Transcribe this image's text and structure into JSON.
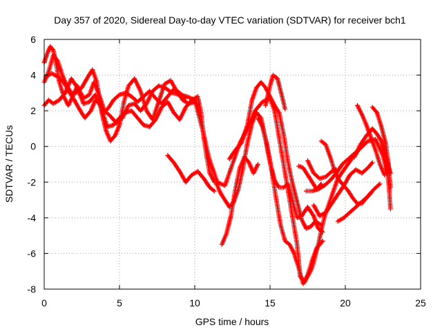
{
  "chart_data": {
    "type": "scatter",
    "title": "Day 357 of 2020, Sidereal Day-to-day VTEC variation (SDTVAR) for receiver bch1",
    "xlabel": "GPS time / hours",
    "ylabel": "SDTVAR / TECUs",
    "xlim": [
      0,
      25
    ],
    "ylim": [
      -8,
      6
    ],
    "x_ticks": [
      0,
      5,
      10,
      15,
      20,
      25
    ],
    "y_ticks": [
      -8,
      -6,
      -4,
      -2,
      0,
      2,
      4,
      6
    ],
    "grid": true,
    "marker": "+",
    "color": "#ff0000",
    "series": [
      {
        "points": [
          [
            0.0,
            4.7
          ],
          [
            0.2,
            5.2
          ],
          [
            0.4,
            5.6
          ],
          [
            0.6,
            5.4
          ],
          [
            0.8,
            4.6
          ],
          [
            1.0,
            3.6
          ],
          [
            1.3,
            2.8
          ],
          [
            1.6,
            2.3
          ],
          [
            1.9,
            2.8
          ],
          [
            2.2,
            3.4
          ],
          [
            2.6,
            2.7
          ],
          [
            3.0,
            2.9
          ],
          [
            3.3,
            3.6
          ],
          [
            3.6,
            3.0
          ],
          [
            4.0,
            2.0
          ],
          [
            4.4,
            1.7
          ],
          [
            4.8,
            1.3
          ],
          [
            5.2,
            1.6
          ],
          [
            5.6,
            2.3
          ],
          [
            6.0,
            2.4
          ],
          [
            6.4,
            2.0
          ],
          [
            6.8,
            2.4
          ],
          [
            7.2,
            3.1
          ],
          [
            7.6,
            3.4
          ],
          [
            8.0,
            3.3
          ],
          [
            8.5,
            3.0
          ],
          [
            9.0,
            2.9
          ],
          [
            9.5,
            2.8
          ],
          [
            10.0,
            2.6
          ],
          [
            10.5,
            1.0
          ],
          [
            11.0,
            -0.8
          ],
          [
            11.5,
            -2.0
          ],
          [
            12.0,
            -2.2
          ],
          [
            12.5,
            -1.0
          ],
          [
            13.0,
            0.2
          ],
          [
            13.5,
            1.0
          ],
          [
            14.0,
            2.0
          ],
          [
            14.5,
            2.5
          ],
          [
            15.0,
            2.7
          ],
          [
            15.3,
            2.0
          ],
          [
            15.6,
            0.5
          ],
          [
            16.0,
            -1.5
          ],
          [
            16.4,
            -3.5
          ],
          [
            16.8,
            -5.5
          ],
          [
            17.0,
            -7.3
          ],
          [
            17.3,
            -7.6
          ],
          [
            17.8,
            -6.8
          ],
          [
            18.2,
            -5.5
          ],
          [
            18.6,
            -4.0
          ],
          [
            19.0,
            -3.0
          ],
          [
            19.5,
            -1.8
          ],
          [
            20.0,
            -1.2
          ],
          [
            20.5,
            -0.6
          ],
          [
            21.0,
            -0.1
          ],
          [
            21.5,
            0.3
          ],
          [
            22.0,
            0.4
          ],
          [
            22.5,
            -0.5
          ],
          [
            22.8,
            -1.5
          ]
        ]
      },
      {
        "points": [
          [
            0.0,
            3.6
          ],
          [
            0.3,
            4.2
          ],
          [
            0.6,
            5.1
          ],
          [
            0.9,
            4.8
          ],
          [
            1.2,
            4.0
          ],
          [
            1.5,
            3.4
          ],
          [
            1.8,
            3.0
          ],
          [
            2.1,
            3.0
          ],
          [
            2.5,
            3.3
          ],
          [
            2.9,
            3.9
          ],
          [
            3.2,
            4.3
          ],
          [
            3.5,
            3.6
          ],
          [
            3.8,
            2.0
          ],
          [
            4.1,
            0.9
          ],
          [
            4.4,
            0.3
          ],
          [
            4.7,
            0.6
          ],
          [
            5.0,
            1.2
          ],
          [
            5.3,
            2.5
          ],
          [
            5.6,
            3.4
          ],
          [
            6.0,
            3.8
          ],
          [
            6.4,
            3.1
          ],
          [
            6.8,
            2.0
          ],
          [
            7.2,
            1.5
          ],
          [
            7.6,
            2.5
          ],
          [
            8.0,
            3.5
          ],
          [
            8.4,
            3.7
          ],
          [
            8.8,
            3.1
          ],
          [
            9.2,
            2.6
          ],
          [
            9.6,
            2.4
          ],
          [
            10.0,
            2.5
          ],
          [
            10.2,
            2.3
          ]
        ]
      },
      {
        "points": [
          [
            0.0,
            2.3
          ],
          [
            0.3,
            2.6
          ],
          [
            0.6,
            2.4
          ],
          [
            1.0,
            2.6
          ],
          [
            1.4,
            3.0
          ],
          [
            1.8,
            3.8
          ],
          [
            2.2,
            3.3
          ],
          [
            2.6,
            2.4
          ],
          [
            3.0,
            2.5
          ],
          [
            3.4,
            2.9
          ],
          [
            3.8,
            2.1
          ],
          [
            4.2,
            1.1
          ],
          [
            4.6,
            1.2
          ],
          [
            5.0,
            1.6
          ],
          [
            5.4,
            1.9
          ],
          [
            5.8,
            2.0
          ],
          [
            6.2,
            1.6
          ],
          [
            6.6,
            1.2
          ],
          [
            7.0,
            1.1
          ],
          [
            7.4,
            1.5
          ],
          [
            7.8,
            2.2
          ],
          [
            8.2,
            2.5
          ],
          [
            8.6,
            1.9
          ],
          [
            9.0,
            1.5
          ],
          [
            9.4,
            2.2
          ],
          [
            9.8,
            2.6
          ],
          [
            10.2,
            2.8
          ],
          [
            10.4,
            2.0
          ],
          [
            10.6,
            0.5
          ],
          [
            10.8,
            -0.6
          ],
          [
            11.0,
            -1.5
          ],
          [
            11.3,
            -2.0
          ]
        ]
      },
      {
        "points": [
          [
            0.1,
            3.9
          ],
          [
            0.5,
            4.1
          ],
          [
            0.9,
            3.9
          ],
          [
            1.3,
            3.6
          ],
          [
            1.7,
            3.0
          ],
          [
            2.0,
            2.6
          ],
          [
            2.4,
            2.0
          ],
          [
            2.7,
            1.6
          ],
          [
            3.1,
            2.0
          ],
          [
            3.4,
            2.6
          ],
          [
            3.7,
            2.4
          ],
          [
            4.0,
            1.9
          ],
          [
            4.3,
            2.2
          ],
          [
            4.6,
            2.6
          ],
          [
            5.0,
            2.9
          ],
          [
            5.4,
            3.0
          ],
          [
            5.8,
            2.8
          ],
          [
            6.2,
            2.5
          ],
          [
            6.6,
            2.8
          ],
          [
            7.0,
            3.1
          ],
          [
            7.4,
            2.7
          ],
          [
            7.8,
            2.4
          ],
          [
            8.2,
            2.8
          ],
          [
            8.6,
            3.2
          ],
          [
            9.0,
            3.0
          ],
          [
            9.4,
            2.7
          ]
        ]
      },
      {
        "points": [
          [
            8.2,
            -0.5
          ],
          [
            8.6,
            -0.9
          ],
          [
            9.0,
            -1.4
          ],
          [
            9.4,
            -2.0
          ],
          [
            9.8,
            -1.6
          ],
          [
            10.2,
            -1.4
          ],
          [
            10.6,
            -1.8
          ],
          [
            11.0,
            -2.3
          ],
          [
            11.3,
            -2.5
          ]
        ]
      },
      {
        "points": [
          [
            11.4,
            -2.0
          ],
          [
            11.7,
            -2.6
          ],
          [
            12.0,
            -3.0
          ],
          [
            12.3,
            -3.4
          ],
          [
            12.6,
            -3.1
          ],
          [
            12.9,
            -2.4
          ],
          [
            13.2,
            -1.2
          ],
          [
            13.5,
            0.2
          ],
          [
            13.8,
            1.3
          ],
          [
            14.1,
            1.9
          ],
          [
            14.4,
            1.6
          ],
          [
            14.7,
            0.4
          ],
          [
            15.0,
            -0.9
          ],
          [
            15.3,
            -1.9
          ],
          [
            15.6,
            -2.3
          ],
          [
            15.9,
            -2.3
          ],
          [
            16.2,
            -2.1
          ],
          [
            16.5,
            -3.1
          ],
          [
            16.8,
            -4.0
          ],
          [
            17.1,
            -3.9
          ],
          [
            17.5,
            -3.4
          ],
          [
            17.9,
            -3.9
          ],
          [
            18.2,
            -4.6
          ],
          [
            18.5,
            -4.8
          ]
        ]
      },
      {
        "points": [
          [
            11.8,
            -5.5
          ],
          [
            12.1,
            -4.9
          ],
          [
            12.4,
            -3.9
          ],
          [
            12.7,
            -2.4
          ],
          [
            13.0,
            -1.2
          ],
          [
            13.3,
            -0.6
          ],
          [
            13.6,
            -0.9
          ],
          [
            13.9,
            -1.5
          ],
          [
            14.2,
            -1.0
          ]
        ]
      },
      {
        "points": [
          [
            12.3,
            -0.7
          ],
          [
            12.7,
            -0.2
          ],
          [
            13.1,
            0.2
          ],
          [
            13.5,
            1.2
          ],
          [
            13.8,
            2.6
          ],
          [
            14.1,
            3.3
          ],
          [
            14.4,
            3.6
          ],
          [
            14.7,
            3.3
          ],
          [
            15.0,
            2.8
          ],
          [
            15.3,
            2.3
          ],
          [
            15.6,
            1.9
          ],
          [
            15.9,
            0.7
          ],
          [
            16.2,
            -0.9
          ],
          [
            16.5,
            -2.1
          ],
          [
            16.8,
            -3.1
          ],
          [
            17.1,
            -4.1
          ],
          [
            17.4,
            -4.6
          ],
          [
            17.7,
            -4.5
          ],
          [
            18.0,
            -4.2
          ],
          [
            18.4,
            -4.4
          ]
        ]
      },
      {
        "points": [
          [
            14.7,
            2.3
          ],
          [
            15.0,
            3.4
          ],
          [
            15.2,
            4.0
          ],
          [
            15.5,
            3.8
          ],
          [
            15.8,
            2.8
          ],
          [
            16.0,
            2.1
          ]
        ]
      },
      {
        "points": [
          [
            14.2,
            1.6
          ],
          [
            14.5,
            1.1
          ],
          [
            14.8,
            0.1
          ],
          [
            15.1,
            -1.3
          ],
          [
            15.4,
            -2.9
          ],
          [
            15.7,
            -4.4
          ],
          [
            16.0,
            -5.3
          ],
          [
            16.3,
            -5.5
          ],
          [
            16.6,
            -6.0
          ],
          [
            16.9,
            -6.8
          ],
          [
            17.2,
            -7.7
          ],
          [
            17.5,
            -7.2
          ],
          [
            17.8,
            -6.4
          ],
          [
            18.1,
            -5.7
          ],
          [
            18.5,
            -5.3
          ]
        ]
      },
      {
        "points": [
          [
            16.9,
            -1.1
          ],
          [
            17.2,
            -1.2
          ],
          [
            17.5,
            -1.6
          ],
          [
            17.8,
            -2.0
          ],
          [
            18.1,
            -2.4
          ],
          [
            18.4,
            -2.1
          ]
        ]
      },
      {
        "points": [
          [
            17.4,
            -2.5
          ],
          [
            17.8,
            -2.5
          ],
          [
            18.2,
            -2.4
          ],
          [
            18.6,
            -2.2
          ],
          [
            19.0,
            -1.9
          ],
          [
            19.4,
            -1.5
          ],
          [
            19.8,
            -1.0
          ],
          [
            20.2,
            -0.7
          ],
          [
            20.6,
            -0.4
          ],
          [
            21.0,
            -0.1
          ]
        ]
      },
      {
        "points": [
          [
            17.9,
            -3.3
          ],
          [
            18.3,
            -3.9
          ],
          [
            18.7,
            -3.7
          ],
          [
            19.1,
            -3.2
          ],
          [
            19.5,
            -2.7
          ],
          [
            19.9,
            -2.2
          ],
          [
            20.3,
            -1.6
          ],
          [
            20.7,
            -1.3
          ],
          [
            21.1,
            -1.5
          ],
          [
            21.5,
            -1.2
          ],
          [
            21.8,
            -0.9
          ]
        ]
      },
      {
        "points": [
          [
            17.5,
            -0.8
          ],
          [
            17.9,
            -1.5
          ],
          [
            18.3,
            -1.8
          ],
          [
            18.7,
            -1.7
          ],
          [
            19.1,
            -1.4
          ],
          [
            19.4,
            -1.3
          ]
        ]
      },
      {
        "points": [
          [
            18.4,
            0.3
          ],
          [
            18.7,
            0.1
          ],
          [
            19.0,
            -0.6
          ],
          [
            19.3,
            -1.4
          ],
          [
            19.6,
            -1.9
          ],
          [
            19.9,
            -2.2
          ],
          [
            20.2,
            -2.5
          ],
          [
            20.5,
            -2.9
          ],
          [
            20.8,
            -3.2
          ],
          [
            21.1,
            -3.2
          ],
          [
            21.4,
            -2.9
          ],
          [
            21.7,
            -2.6
          ]
        ]
      },
      {
        "points": [
          [
            19.5,
            -4.2
          ],
          [
            19.9,
            -4.0
          ],
          [
            20.3,
            -3.7
          ],
          [
            20.7,
            -3.4
          ],
          [
            21.1,
            -3.1
          ],
          [
            21.5,
            -2.8
          ],
          [
            21.9,
            -2.4
          ],
          [
            22.3,
            -2.1
          ]
        ]
      },
      {
        "points": [
          [
            20.8,
            2.3
          ],
          [
            21.1,
            1.8
          ],
          [
            21.4,
            1.2
          ],
          [
            21.7,
            0.5
          ],
          [
            22.0,
            -0.2
          ],
          [
            22.3,
            -1.0
          ],
          [
            22.6,
            -1.6
          ]
        ]
      },
      {
        "points": [
          [
            20.6,
            -0.6
          ],
          [
            21.0,
            0.1
          ],
          [
            21.4,
            0.6
          ],
          [
            21.8,
            1.0
          ],
          [
            22.1,
            0.7
          ],
          [
            22.4,
            0.3
          ],
          [
            22.7,
            -0.6
          ],
          [
            23.0,
            -1.5
          ]
        ]
      },
      {
        "points": [
          [
            21.8,
            2.2
          ],
          [
            22.1,
            1.9
          ],
          [
            22.4,
            1.1
          ],
          [
            22.7,
            0.1
          ],
          [
            22.9,
            -1.3
          ],
          [
            23.0,
            -2.3
          ]
        ]
      },
      {
        "points": [
          [
            22.4,
            0.3
          ],
          [
            22.7,
            -0.9
          ],
          [
            22.9,
            -2.2
          ],
          [
            23.0,
            -3.5
          ]
        ]
      }
    ]
  }
}
